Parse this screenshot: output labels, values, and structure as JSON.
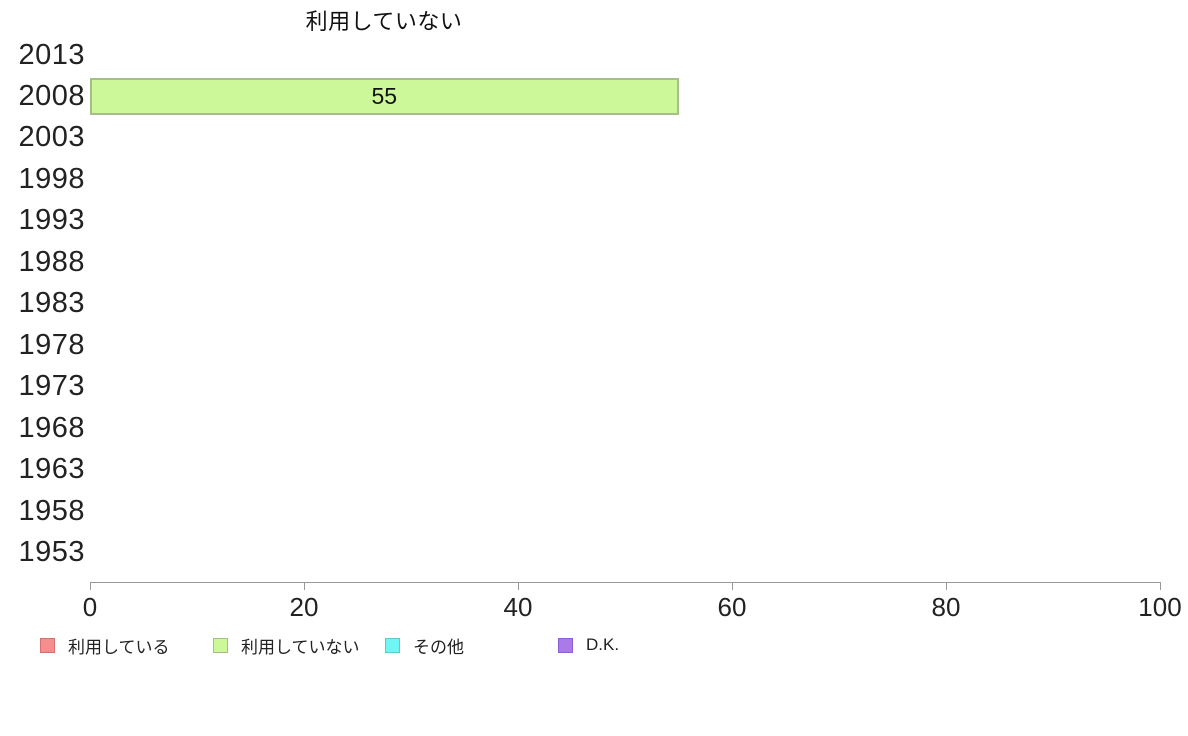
{
  "chart_data": {
    "type": "bar",
    "orientation": "horizontal",
    "title": "利用していない",
    "categories": [
      "2013",
      "2008",
      "2003",
      "1998",
      "1993",
      "1988",
      "1983",
      "1978",
      "1973",
      "1968",
      "1963",
      "1958",
      "1953"
    ],
    "series": [
      {
        "name": "利用している",
        "color": "#f58f8f",
        "border_color": "#d96e6e",
        "values": [
          null,
          null,
          null,
          null,
          null,
          null,
          null,
          null,
          null,
          null,
          null,
          null,
          null
        ]
      },
      {
        "name": "利用していない",
        "color": "#ccf899",
        "border_color": "#a9bd8a",
        "values": [
          null,
          55,
          null,
          null,
          null,
          null,
          null,
          null,
          null,
          null,
          null,
          null,
          null
        ]
      },
      {
        "name": "その他",
        "color": "#70f5f5",
        "border_color": "#5fc9c9",
        "values": [
          null,
          null,
          null,
          null,
          null,
          null,
          null,
          null,
          null,
          null,
          null,
          null,
          null
        ]
      },
      {
        "name": "D.K.",
        "color": "#ab7ae8",
        "border_color": "#8a5fd0",
        "values": [
          null,
          null,
          null,
          null,
          null,
          null,
          null,
          null,
          null,
          null,
          null,
          null,
          null
        ]
      }
    ],
    "xlim": [
      0,
      100
    ],
    "x_ticks": [
      0,
      20,
      40,
      60,
      80,
      100
    ],
    "grid": false,
    "legend_position": "bottom",
    "background": "#ffffff",
    "axis_color": "#999999"
  }
}
